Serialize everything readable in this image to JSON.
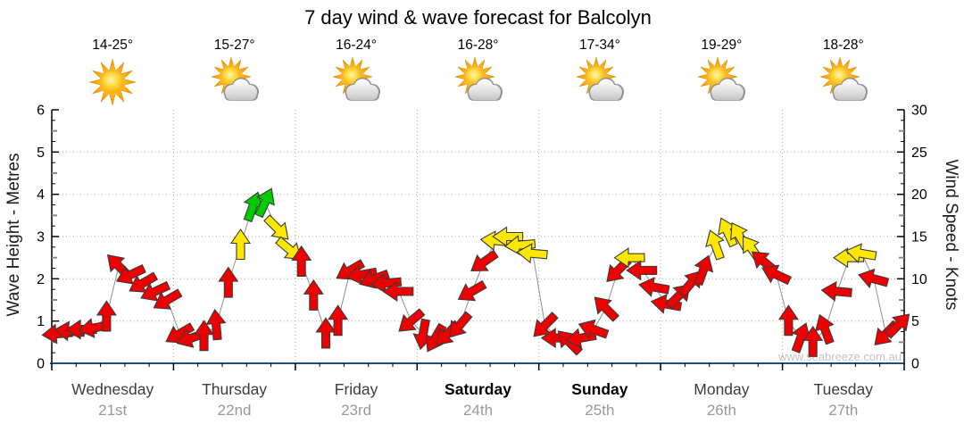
{
  "header": {
    "title": "7 day wind & wave forecast for Balcolyn"
  },
  "watermark": "www.seabreeze.com.au",
  "chart_data": {
    "type": "wind-arrows",
    "description": "Wind speed time-series drawn as direction arrows connected by a grey line; arrow colour indicates speed band",
    "y_left": {
      "label": "Wave Height - Metres",
      "min": 0,
      "max": 6,
      "ticks": [
        0,
        1,
        2,
        3,
        4,
        5,
        6
      ]
    },
    "y_right": {
      "label": "Wind Speed - Knots",
      "min": 0,
      "max": 30,
      "ticks": [
        0,
        5,
        10,
        15,
        20,
        25,
        30
      ]
    },
    "grid": "dotted grey horizontal line per metre, dotted vertical line at each day boundary",
    "points_per_day": 10,
    "colors": {
      "red": "#EE0000",
      "yellow": "#FFE800",
      "green": "#00CC00",
      "outline": "#3b3b3b",
      "join_line": "#909090",
      "bottom_axis": "#1F4E79",
      "grid": "#ababab",
      "day_name": "#3d3d3d",
      "day_name_weekend": "#000000",
      "day_date": "#999999"
    },
    "color_legend": {
      "red": "< 12.5 knots",
      "yellow": "12.5 - 17.5 knots",
      "green": "> 17.5 knots"
    },
    "days": [
      {
        "name": "Wednesday",
        "date": "21st",
        "bold": false,
        "temp": "14-25°",
        "icon": "sunny",
        "wind_kn": [
          3.5,
          3.8,
          4.0,
          4.2,
          5.5,
          11.5,
          10.5,
          9.5,
          8.5,
          7.5
        ],
        "wind_dir_toward_deg": [
          265,
          275,
          270,
          260,
          0,
          315,
          245,
          240,
          245,
          240
        ]
      },
      {
        "name": "Thursday",
        "date": "22nd",
        "bold": false,
        "temp": "15-27°",
        "icon": "partly-cloudy",
        "wind_kn": [
          3.5,
          3.0,
          3.2,
          4.5,
          9.5,
          14.0,
          18.5,
          19.0,
          16.0,
          13.5
        ],
        "wind_dir_toward_deg": [
          240,
          250,
          0,
          355,
          0,
          0,
          20,
          25,
          135,
          130
        ]
      },
      {
        "name": "Friday",
        "date": "23rd",
        "bold": false,
        "temp": "16-24°",
        "icon": "partly-cloudy",
        "wind_kn": [
          12.0,
          8.0,
          3.5,
          5.0,
          11.0,
          10.5,
          10.0,
          9.5,
          8.5,
          5.0
        ],
        "wind_dir_toward_deg": [
          0,
          0,
          0,
          0,
          240,
          260,
          250,
          265,
          270,
          230
        ]
      },
      {
        "name": "Saturday",
        "date": "24th",
        "bold": true,
        "temp": "16-28°",
        "icon": "partly-cloudy",
        "wind_kn": [
          3.5,
          3.0,
          3.5,
          4.5,
          8.5,
          12.0,
          14.5,
          15.0,
          14.0,
          13.0
        ],
        "wind_dir_toward_deg": [
          190,
          210,
          225,
          220,
          240,
          235,
          275,
          270,
          265,
          275
        ]
      },
      {
        "name": "Sunday",
        "date": "25th",
        "bold": true,
        "temp": "17-34°",
        "icon": "partly-cloudy",
        "wind_kn": [
          4.5,
          3.0,
          2.5,
          3.0,
          4.0,
          6.5,
          11.0,
          12.5,
          11.0,
          9.0
        ],
        "wind_dir_toward_deg": [
          225,
          270,
          315,
          260,
          290,
          315,
          225,
          270,
          270,
          280
        ]
      },
      {
        "name": "Monday",
        "date": "26th",
        "bold": false,
        "temp": "19-29°",
        "icon": "partly-cloudy",
        "wind_kn": [
          7.0,
          8.0,
          9.5,
          11.0,
          14.0,
          15.5,
          15.0,
          13.5,
          12.0,
          10.5
        ],
        "wind_dir_toward_deg": [
          280,
          45,
          40,
          20,
          340,
          335,
          330,
          325,
          310,
          295
        ]
      },
      {
        "name": "Tuesday",
        "date": "27th",
        "bold": false,
        "temp": "18-28°",
        "icon": "partly-cloudy",
        "wind_kn": [
          5.0,
          3.0,
          2.5,
          4.0,
          8.5,
          12.5,
          13.0,
          10.0,
          3.5,
          4.5
        ],
        "wind_dir_toward_deg": [
          0,
          20,
          0,
          340,
          275,
          270,
          280,
          285,
          225,
          45
        ]
      }
    ]
  }
}
